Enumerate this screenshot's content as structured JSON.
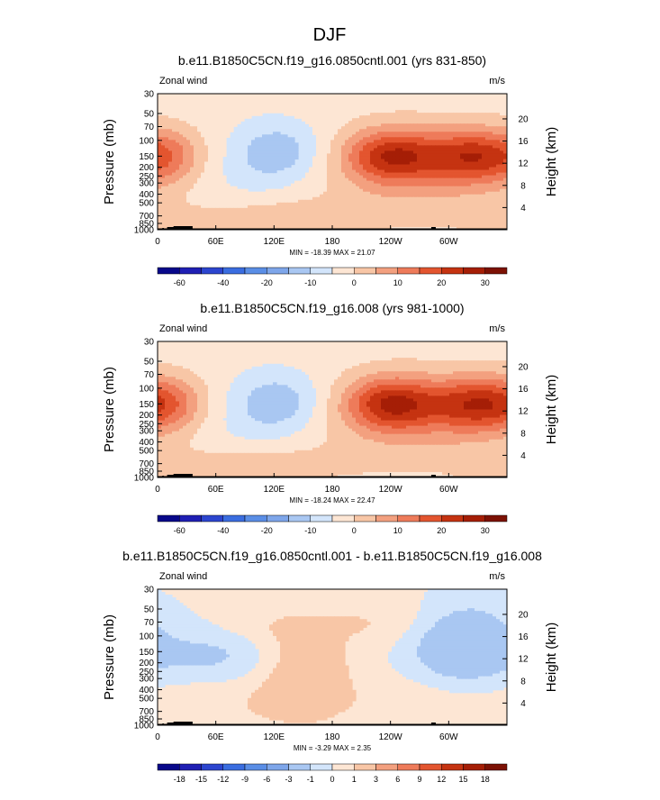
{
  "figure": {
    "title": "DJF"
  },
  "palette": {
    "abs": [
      "#08088a",
      "#1f1fb4",
      "#2c45cf",
      "#3a6de0",
      "#5a8ee6",
      "#7ea6ea",
      "#a9c7f2",
      "#d3e5fb",
      "#fde6d4",
      "#f8c6a6",
      "#f3a07f",
      "#ee7b5a",
      "#e3552f",
      "#c53311",
      "#a51e06",
      "#7c1104"
    ],
    "diff": [
      "#08088a",
      "#1f1fb4",
      "#2c45cf",
      "#3a6de0",
      "#5a8ee6",
      "#7ea6ea",
      "#a9c7f2",
      "#d3e5fb",
      "#fde6d4",
      "#f8c6a6",
      "#f3a07f",
      "#ee7b5a",
      "#e3552f",
      "#c53311",
      "#a51e06",
      "#7c1104"
    ]
  },
  "chart_data": [
    {
      "type": "heatmap",
      "title": "b.e11.B1850C5CN.f19_g16.0850cntl.001 (yrs 831-850)",
      "left_label": "Zonal wind",
      "right_label": "m/s",
      "ylabel": "Pressure (mb)",
      "y2label": "Height (km)",
      "x_ticks": [
        "0",
        "60E",
        "120E",
        "180",
        "120W",
        "60W"
      ],
      "y_ticks": [
        "30",
        "50",
        "70",
        "100",
        "150",
        "200",
        "250",
        "300",
        "400",
        "500",
        "700",
        "850",
        "1000"
      ],
      "y2_ticks": [
        "20",
        "16",
        "12",
        "8",
        "4"
      ],
      "stats": "MIN = -18.39  MAX = 21.07",
      "colorbar_labels": [
        "-60",
        "-40",
        "-20",
        "-10",
        "0",
        "10",
        "20",
        "30"
      ],
      "fields": [
        {
          "lon": 330,
          "p": 150,
          "a": 22,
          "sx": 38,
          "sy": 0.48
        },
        {
          "lon": 240,
          "p": 150,
          "a": 22,
          "sx": 32,
          "sy": 0.48
        },
        {
          "lon": 280,
          "p": 220,
          "a": 8,
          "sx": 80,
          "sy": 0.9
        },
        {
          "lon": 125,
          "p": 130,
          "a": -10,
          "sx": 32,
          "sy": 0.55
        },
        {
          "lon": 75,
          "p": 250,
          "a": -3,
          "sx": 50,
          "sy": 0.7
        },
        {
          "lon": 120,
          "p": 720,
          "a": 6,
          "sx": 75,
          "sy": 0.35
        },
        {
          "lon": 20,
          "p": 150,
          "a": 5,
          "sx": 20,
          "sy": 0.5
        },
        {
          "lon": 20,
          "p": 950,
          "a": 4,
          "sx": 40,
          "sy": 0.2
        }
      ]
    },
    {
      "type": "heatmap",
      "title": "b.e11.B1850C5CN.f19_g16.008 (yrs 981-1000)",
      "left_label": "Zonal wind",
      "right_label": "m/s",
      "ylabel": "Pressure (mb)",
      "y2label": "Height (km)",
      "x_ticks": [
        "0",
        "60E",
        "120E",
        "180",
        "120W",
        "60W"
      ],
      "y_ticks": [
        "30",
        "50",
        "70",
        "100",
        "150",
        "200",
        "250",
        "300",
        "400",
        "500",
        "700",
        "850",
        "1000"
      ],
      "y2_ticks": [
        "20",
        "16",
        "12",
        "8",
        "4"
      ],
      "stats": "MIN = -18.24  MAX = 22.47",
      "colorbar_labels": [
        "-60",
        "-40",
        "-20",
        "-10",
        "0",
        "10",
        "20",
        "30"
      ],
      "fields": [
        {
          "lon": 335,
          "p": 150,
          "a": 23,
          "sx": 38,
          "sy": 0.48
        },
        {
          "lon": 240,
          "p": 150,
          "a": 23,
          "sx": 32,
          "sy": 0.48
        },
        {
          "lon": 280,
          "p": 220,
          "a": 8,
          "sx": 80,
          "sy": 0.9
        },
        {
          "lon": 125,
          "p": 140,
          "a": -10,
          "sx": 32,
          "sy": 0.55
        },
        {
          "lon": 75,
          "p": 250,
          "a": -3,
          "sx": 50,
          "sy": 0.7
        },
        {
          "lon": 100,
          "p": 720,
          "a": 6,
          "sx": 70,
          "sy": 0.35
        },
        {
          "lon": 20,
          "p": 150,
          "a": 5,
          "sx": 20,
          "sy": 0.5
        },
        {
          "lon": 20,
          "p": 950,
          "a": 4,
          "sx": 40,
          "sy": 0.2
        }
      ]
    },
    {
      "type": "heatmap",
      "title": "b.e11.B1850C5CN.f19_g16.0850cntl.001 - b.e11.B1850C5CN.f19_g16.008",
      "left_label": "Zonal wind",
      "right_label": "m/s",
      "ylabel": "Pressure (mb)",
      "y2label": "Height (km)",
      "x_ticks": [
        "0",
        "60E",
        "120E",
        "180",
        "120W",
        "60W"
      ],
      "y_ticks": [
        "30",
        "50",
        "70",
        "100",
        "150",
        "200",
        "250",
        "300",
        "400",
        "500",
        "700",
        "850",
        "1000"
      ],
      "y2_ticks": [
        "20",
        "16",
        "12",
        "8",
        "4"
      ],
      "stats": "MIN = -3.29  MAX =  2.35",
      "colorbar_labels": [
        "-18",
        "-15",
        "-12",
        "-9",
        "-6",
        "-3",
        "-1",
        "0",
        "1",
        "3",
        "6",
        "9",
        "12",
        "15",
        "18"
      ],
      "fields": [
        {
          "lon": 300,
          "p": 130,
          "a": -1.8,
          "sx": 35,
          "sy": 0.7
        },
        {
          "lon": 330,
          "p": 120,
          "a": -1.2,
          "sx": 30,
          "sy": 0.8
        },
        {
          "lon": 60,
          "p": 170,
          "a": -1.6,
          "sx": 50,
          "sy": 0.6
        },
        {
          "lon": 150,
          "p": 250,
          "a": 1.8,
          "sx": 35,
          "sy": 0.9
        },
        {
          "lon": 230,
          "p": 70,
          "a": 0.8,
          "sx": 45,
          "sy": 0.4
        },
        {
          "lon": 100,
          "p": 80,
          "a": 0.7,
          "sx": 40,
          "sy": 0.35
        },
        {
          "lon": 60,
          "p": 500,
          "a": 0.8,
          "sx": 60,
          "sy": 0.6
        },
        {
          "lon": 260,
          "p": 600,
          "a": 0.7,
          "sx": 50,
          "sy": 0.5
        }
      ]
    }
  ]
}
